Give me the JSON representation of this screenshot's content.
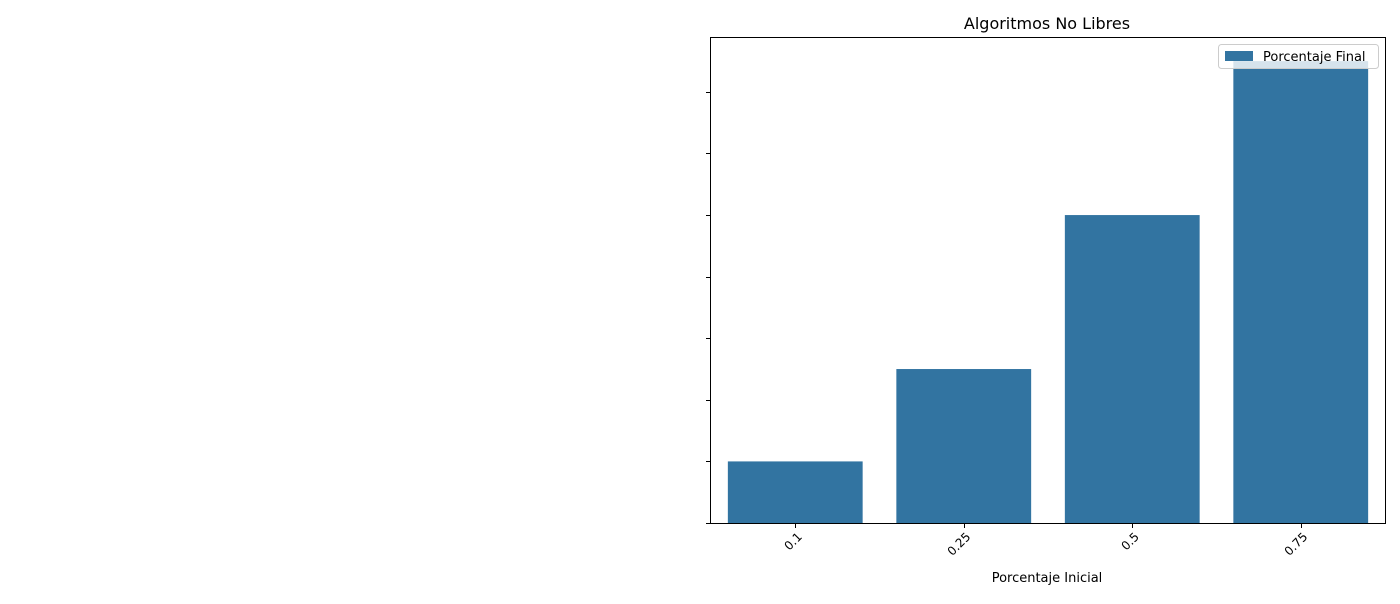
{
  "chart_data": {
    "type": "bar",
    "title": "Algoritmos No Libres",
    "xlabel": "Porcentaje Inicial",
    "ylabel": "",
    "categories": [
      "0.1",
      "0.25",
      "0.5",
      "0.75"
    ],
    "series": [
      {
        "name": "Porcentaje Final",
        "values": [
          0.1,
          0.25,
          0.5,
          0.75
        ],
        "color": "#3274a1"
      }
    ],
    "ylim": [
      0,
      0.7875
    ],
    "y_tick_values": [
      0,
      0.1,
      0.2,
      0.3,
      0.4,
      0.5,
      0.6,
      0.7
    ],
    "y_tick_labels_visible": false,
    "x_tick_rotation_deg": 45,
    "grid": false,
    "legend_position": "top-right"
  }
}
